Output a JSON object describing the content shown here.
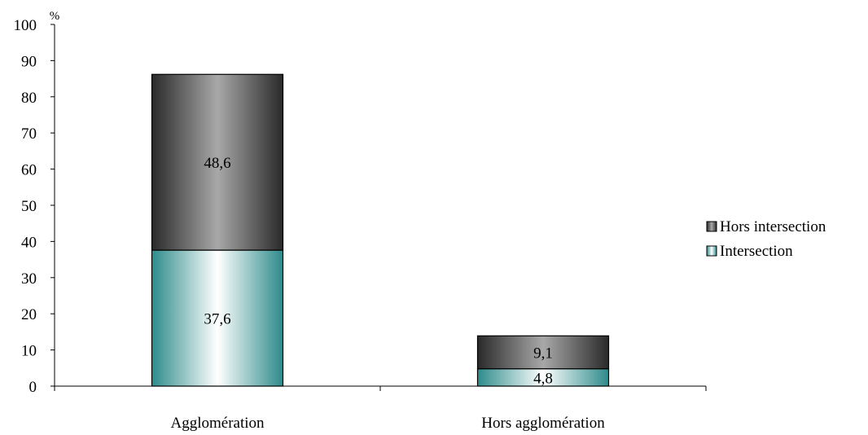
{
  "chart_data": {
    "type": "bar",
    "stacked": true,
    "categories": [
      "Agglomération",
      "Hors agglomération"
    ],
    "series": [
      {
        "name": "Intersection",
        "values": [
          37.6,
          4.8
        ],
        "labels": [
          "37,6",
          "4,8"
        ],
        "colors": {
          "edge": "#2e8b8b",
          "center": "#ffffff"
        }
      },
      {
        "name": "Hors intersection",
        "values": [
          48.6,
          9.1
        ],
        "labels": [
          "48,6",
          "9,1"
        ],
        "colors": {
          "edge": "#2a2a2a",
          "center": "#a8a8a8"
        }
      }
    ],
    "y_unit": "%",
    "ylim": [
      0,
      100
    ],
    "yticks": [
      0,
      10,
      20,
      30,
      40,
      50,
      60,
      70,
      80,
      90,
      100
    ],
    "grid": false,
    "legend_position": "right"
  }
}
